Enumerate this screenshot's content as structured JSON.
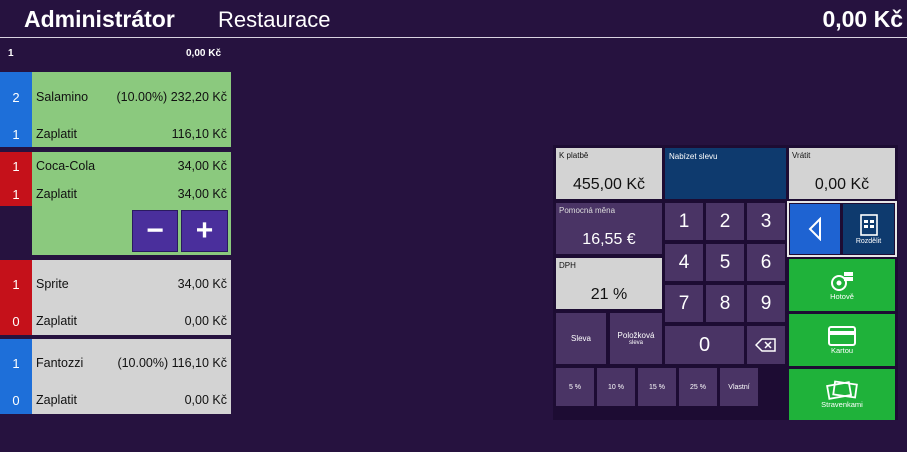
{
  "header": {
    "user": "Administrátor",
    "section": "Restaurace",
    "total": "0,00 Kč"
  },
  "summary": {
    "count": "1",
    "amount": "0,00 Kč"
  },
  "items": [
    {
      "qty": "2",
      "name": "Salamino",
      "price": "(10.00%) 232,20 Kč",
      "pay_qty": "1",
      "pay_label": "Zaplatit",
      "pay_amount": "116,10 Kč",
      "color": "#1e6fd9",
      "bg": "#8bc97e"
    },
    {
      "qty": "1",
      "name": "Coca-Cola",
      "price": "34,00 Kč",
      "pay_qty": "1",
      "pay_label": "Zaplatit",
      "pay_amount": "34,00 Kč",
      "color": "#c5111a",
      "bg": "#8bc97e"
    },
    {
      "qty": "1",
      "name": "Sprite",
      "price": "34,00 Kč",
      "pay_qty": "0",
      "pay_label": "Zaplatit",
      "pay_amount": "0,00 Kč",
      "color": "#c5111a",
      "bg": "#d3d3d3"
    },
    {
      "qty": "1",
      "name": "Fantozzi",
      "price": "(10.00%) 116,10 Kč",
      "pay_qty": "0",
      "pay_label": "Zaplatit",
      "pay_amount": "0,00 Kč",
      "color": "#1e6fd9",
      "bg": "#d3d3d3"
    }
  ],
  "stepper": {
    "minus": "−",
    "plus": "+"
  },
  "payment": {
    "k_platbe_label": "K platbě",
    "k_platbe_value": "455,00 Kč",
    "nabizet_slevu_label": "Nabízet slevu",
    "vratit_label": "Vrátit",
    "vratit_value": "0,00 Kč",
    "pomocna_mena_label": "Pomocná měna",
    "pomocna_mena_value": "16,55 €",
    "dph_label": "DPH",
    "dph_value": "21 %",
    "keys": [
      "1",
      "2",
      "3",
      "4",
      "5",
      "6",
      "7",
      "8",
      "9"
    ],
    "zero": "0",
    "sleva": "Sleva",
    "polozkova_1": "Položková",
    "polozkova_2": "sleva",
    "discounts": [
      "5 %",
      "10 %",
      "15 %",
      "25 %",
      "Vlastní"
    ],
    "rozdelit": "Rozdělit",
    "hotove": "Hotově",
    "kartou": "Kartou",
    "stravenkami": "Stravenkami"
  },
  "colors": {
    "background": "#26123f",
    "green": "#1fb23a",
    "blue": "#1e6fd9",
    "red": "#c5111a",
    "navy": "#0e3a6e"
  }
}
